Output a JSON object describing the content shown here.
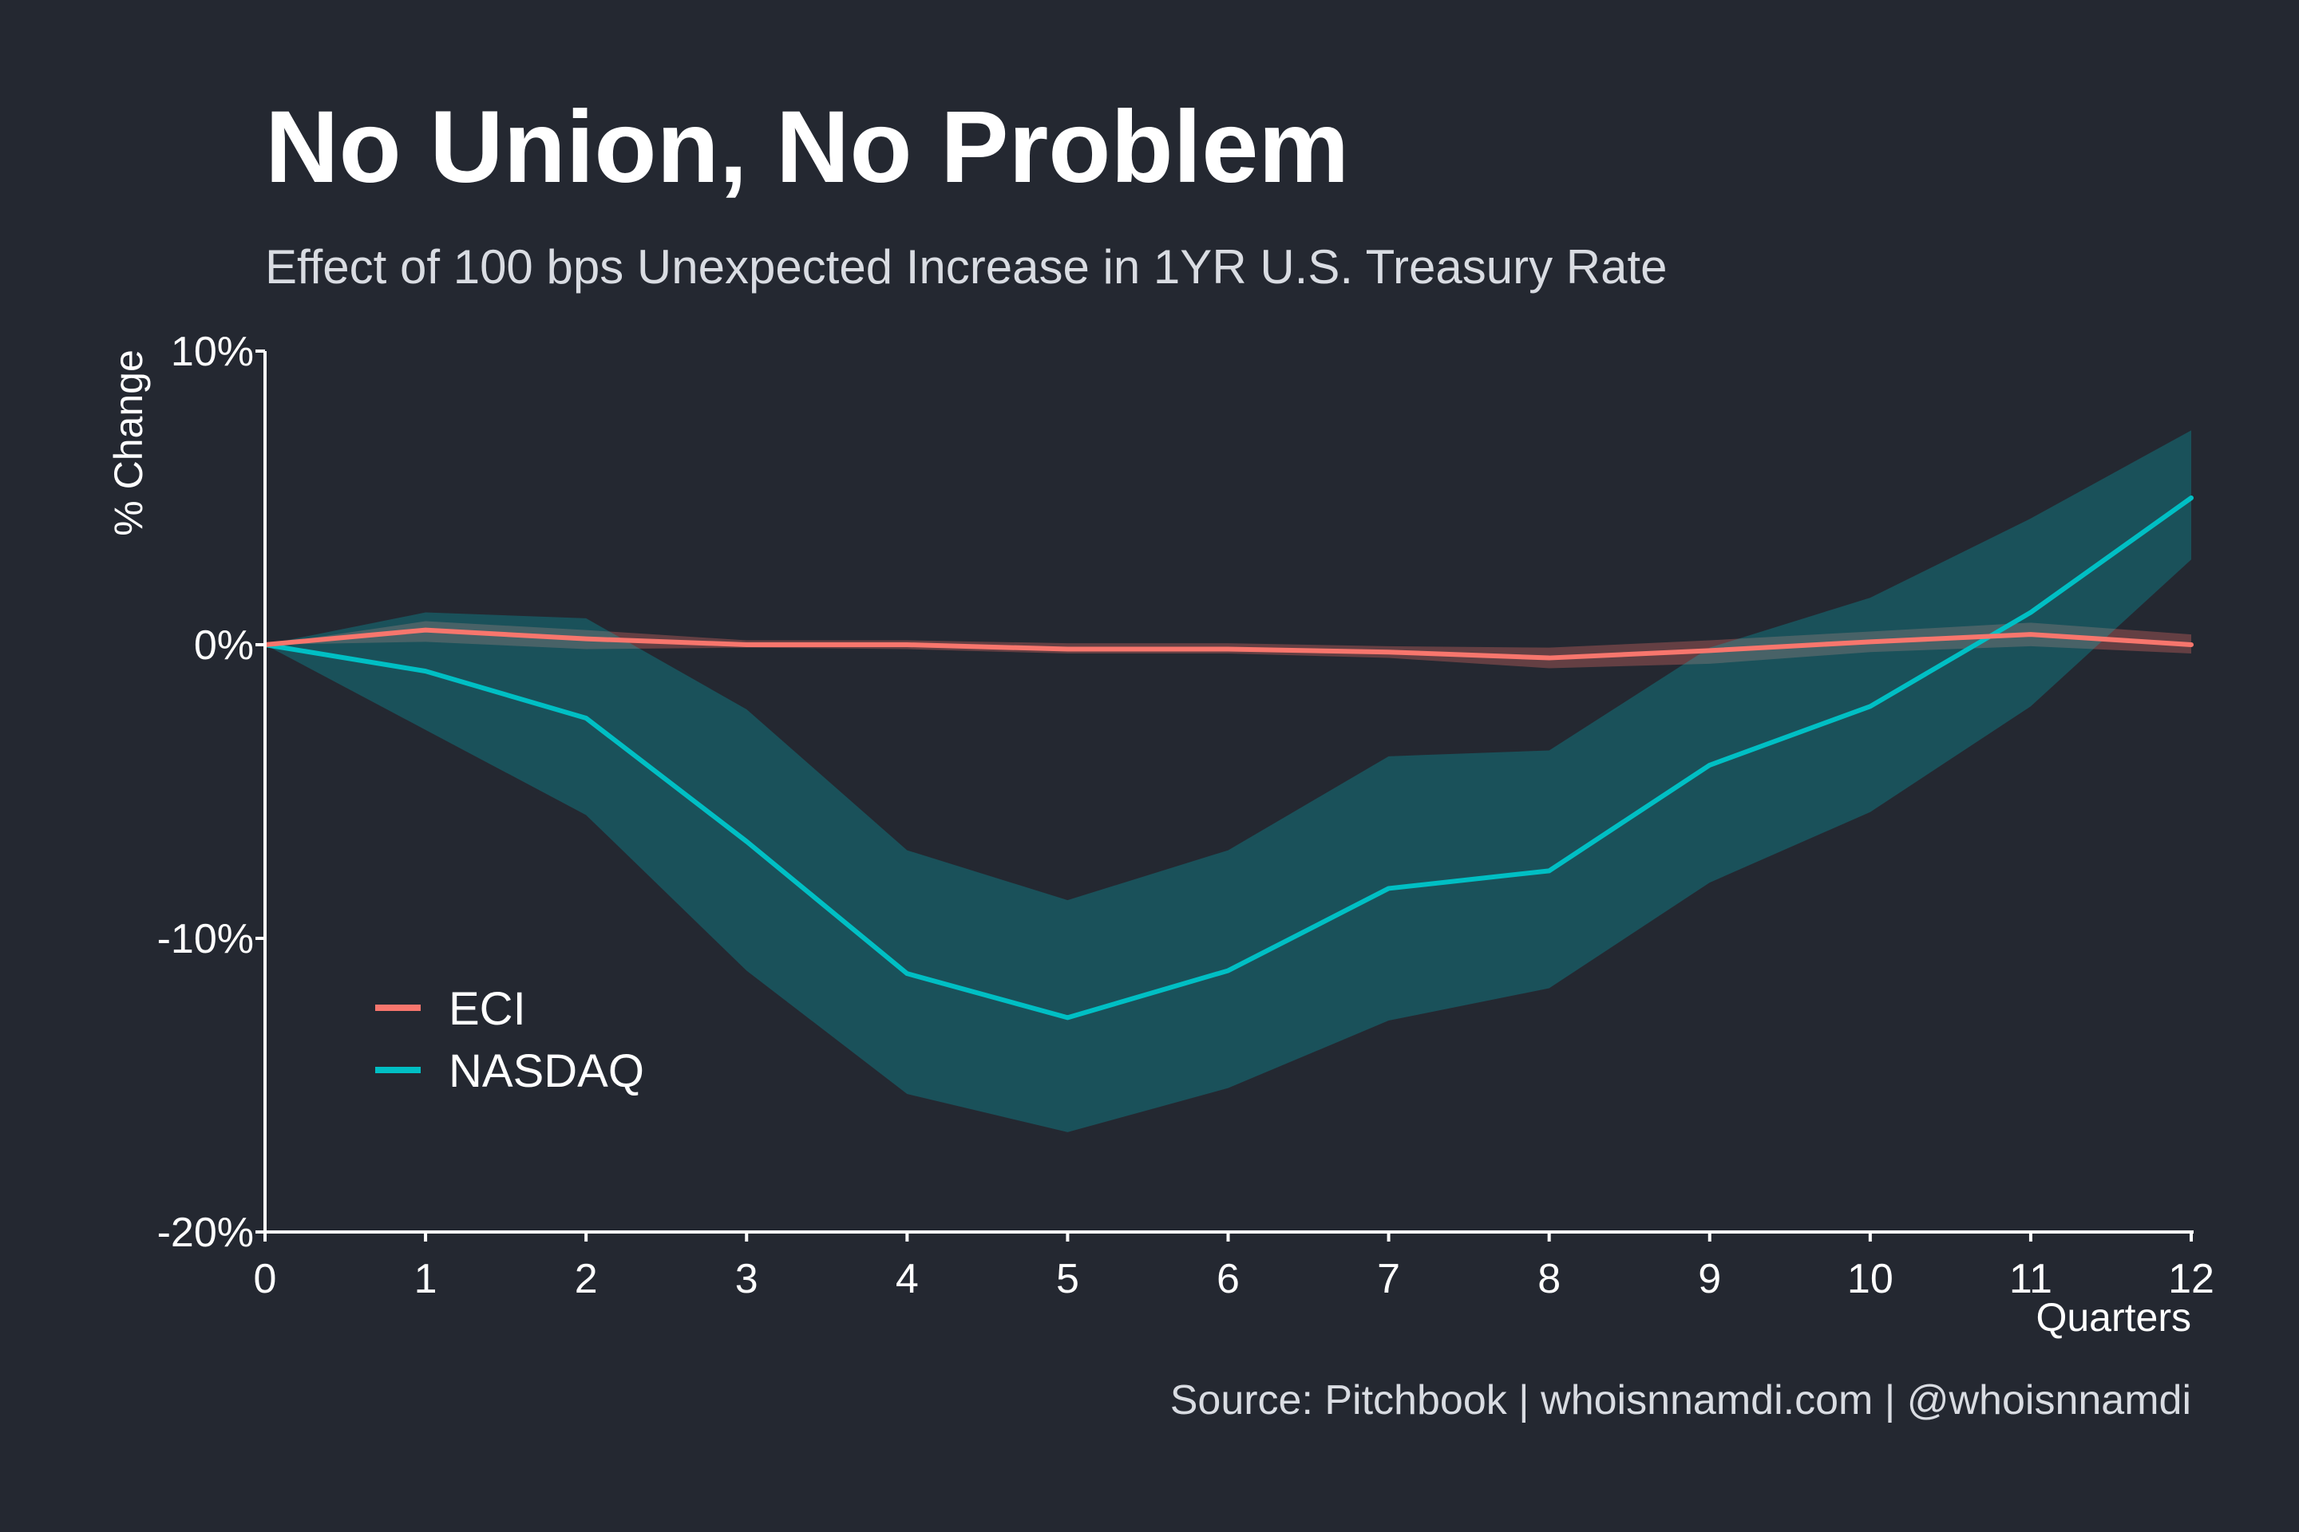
{
  "chart_data": {
    "type": "line",
    "title": "No Union, No Problem",
    "subtitle": "Effect of 100 bps Unexpected Increase in 1YR U.S. Treasury Rate",
    "xlabel": "Quarters",
    "ylabel": "% Change",
    "caption": "Source: Pitchbook | whoisnnamdi.com | @whoisnnamdi",
    "x": [
      0,
      1,
      2,
      3,
      4,
      5,
      6,
      7,
      8,
      9,
      10,
      11,
      12
    ],
    "xlim": [
      0,
      12
    ],
    "ylim": [
      -20,
      10
    ],
    "x_ticks": [
      "0",
      "1",
      "2",
      "3",
      "4",
      "5",
      "6",
      "7",
      "8",
      "9",
      "10",
      "11",
      "12"
    ],
    "y_ticks": [
      {
        "value": 10,
        "label": "10%"
      },
      {
        "value": 0,
        "label": "0%"
      },
      {
        "value": -10,
        "label": "-10%"
      },
      {
        "value": -20,
        "label": "-20%"
      }
    ],
    "grid": false,
    "legend_position": "bottom-left",
    "series": [
      {
        "name": "ECI",
        "color": "#f8766d",
        "values": [
          0,
          0.5,
          0.2,
          0.0,
          0.0,
          -0.15,
          -0.15,
          -0.25,
          -0.45,
          -0.2,
          0.1,
          0.35,
          0.0
        ],
        "lower": [
          0,
          0.1,
          -0.15,
          -0.1,
          -0.15,
          -0.3,
          -0.3,
          -0.45,
          -0.8,
          -0.65,
          -0.25,
          -0.05,
          -0.3
        ],
        "upper": [
          0,
          0.8,
          0.5,
          0.15,
          0.15,
          0.05,
          0.05,
          -0.05,
          -0.1,
          0.15,
          0.45,
          0.75,
          0.35
        ]
      },
      {
        "name": "NASDAQ",
        "color": "#00bfc4",
        "values": [
          0,
          -0.9,
          -2.5,
          -6.7,
          -11.2,
          -12.7,
          -11.1,
          -8.3,
          -7.7,
          -4.1,
          -2.1,
          1.1,
          5.0
        ],
        "lower": [
          0,
          -2.9,
          -5.8,
          -11.1,
          -15.3,
          -16.6,
          -15.1,
          -12.8,
          -11.7,
          -8.1,
          -5.7,
          -2.1,
          2.9
        ],
        "upper": [
          0,
          1.1,
          0.9,
          -2.2,
          -7.0,
          -8.7,
          -7.0,
          -3.8,
          -3.6,
          -0.1,
          1.6,
          4.3,
          7.3
        ]
      }
    ]
  }
}
